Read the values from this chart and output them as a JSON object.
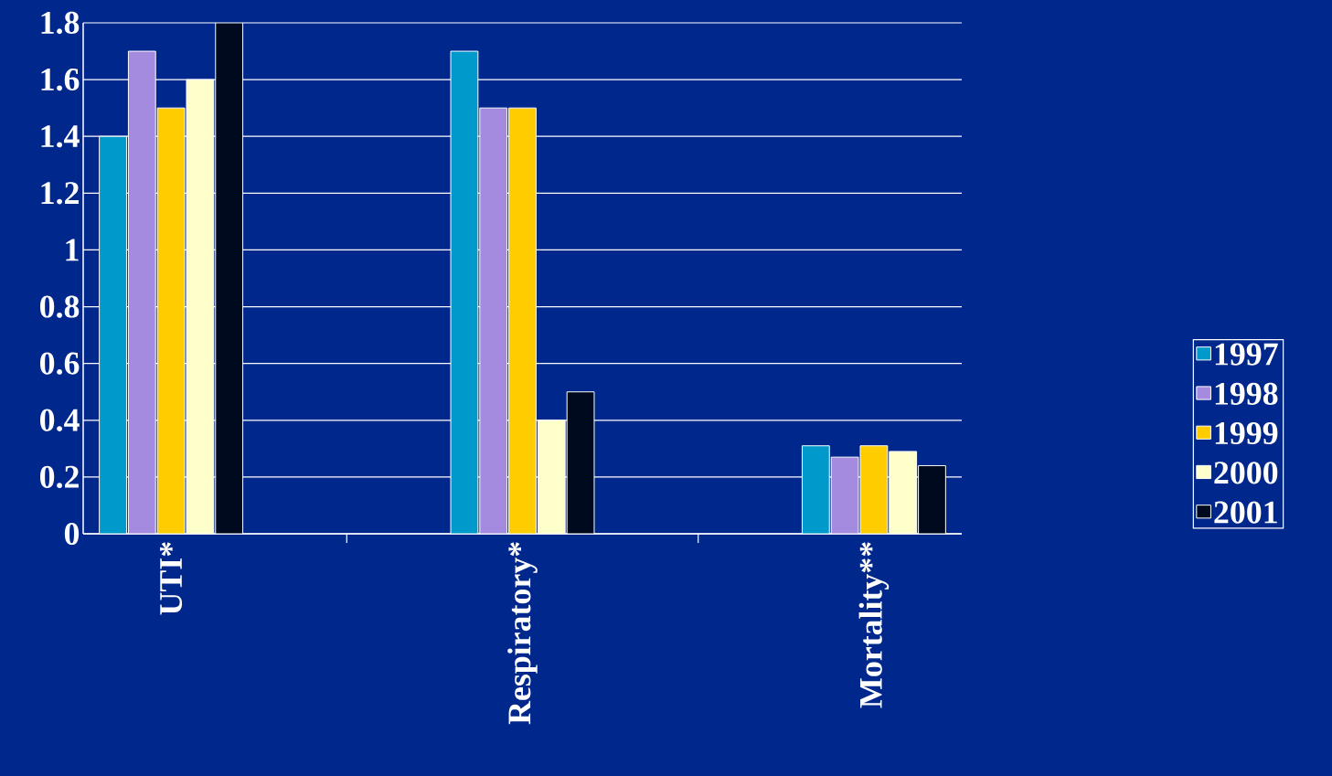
{
  "chart_data": {
    "type": "bar",
    "categories": [
      "UTI*",
      "Respiratory*",
      "Mortality**"
    ],
    "series": [
      {
        "name": "1997",
        "color": "#0099cc",
        "values": [
          1.4,
          1.7,
          0.31
        ]
      },
      {
        "name": "1998",
        "color": "#a58be0",
        "values": [
          1.7,
          1.5,
          0.27
        ]
      },
      {
        "name": "1999",
        "color": "#ffcc00",
        "values": [
          1.5,
          1.5,
          0.31
        ]
      },
      {
        "name": "2000",
        "color": "#ffffcc",
        "values": [
          1.6,
          0.4,
          0.29
        ]
      },
      {
        "name": "2001",
        "color": "#000a1e",
        "values": [
          1.8,
          0.5,
          0.24
        ]
      }
    ],
    "ylim": [
      0,
      1.8
    ],
    "yticks": [
      0,
      0.2,
      0.4,
      0.6,
      0.8,
      1,
      1.2,
      1.4,
      1.6,
      1.8
    ],
    "grid": "y",
    "legend": "right"
  }
}
